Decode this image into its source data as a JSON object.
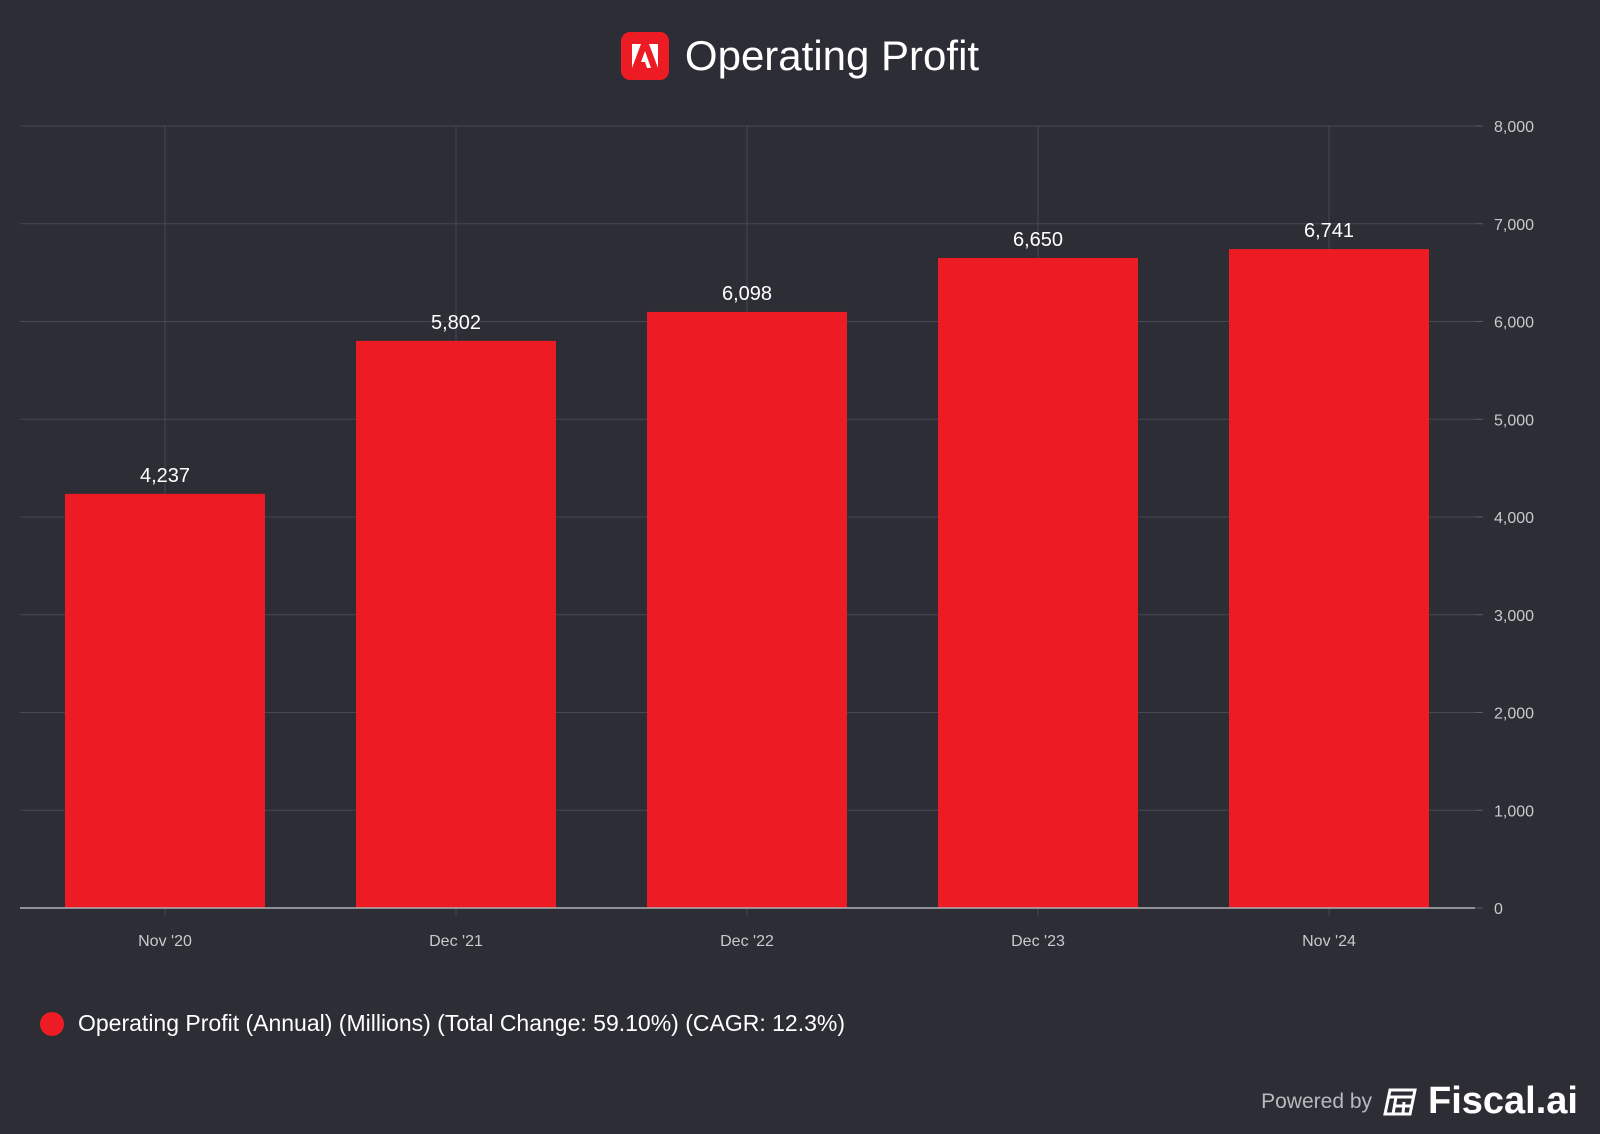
{
  "chart_data": {
    "type": "bar",
    "title": "Operating Profit",
    "categories": [
      "Nov '20",
      "Dec '21",
      "Dec '22",
      "Dec '23",
      "Nov '24"
    ],
    "values": [
      4237,
      5802,
      6098,
      6650,
      6741
    ],
    "value_labels": [
      "4,237",
      "5,802",
      "6,098",
      "6,650",
      "6,741"
    ],
    "ylim": [
      0,
      8000
    ],
    "yticks": [
      0,
      1000,
      2000,
      3000,
      4000,
      5000,
      6000,
      7000,
      8000
    ],
    "ytick_labels": [
      "0",
      "1,000",
      "2,000",
      "3,000",
      "4,000",
      "5,000",
      "6,000",
      "7,000",
      "8,000"
    ],
    "y_axis_side": "right",
    "grid": true,
    "bar_color": "#ed1c24",
    "legend": "Operating Profit (Annual) (Millions) (Total Change: 59.10%) (CAGR: 12.3%)",
    "legend_placement": "bottom-left"
  },
  "footer": {
    "powered_by": "Powered by",
    "brand": "Fiscal.ai"
  }
}
